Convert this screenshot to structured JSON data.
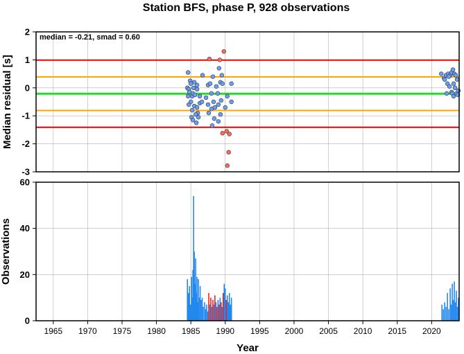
{
  "title": "Station BFS, phase P, 928 observations",
  "chart_data": [
    {
      "type": "scatter",
      "ylabel": "Median residual [s]",
      "annotation": "median = -0.21, smad = 0.60",
      "xlim": [
        1962.5,
        2024
      ],
      "ylim": [
        -3,
        2
      ],
      "yticks": [
        "2",
        "1",
        "0",
        "-1",
        "-2",
        "-3"
      ],
      "grid": true,
      "reference_lines": [
        {
          "value": 0.99,
          "color": "#ee0000"
        },
        {
          "value": 0.39,
          "color": "#ffa500"
        },
        {
          "value": -0.21,
          "color": "#22dd22"
        },
        {
          "value": -0.81,
          "color": "#ffa500"
        },
        {
          "value": -1.41,
          "color": "#ee0000"
        }
      ],
      "colors": {
        "inlier": "#6aa0f0",
        "outlier": "#ff6a55"
      },
      "points": [
        [
          1984.6,
          0.55,
          0
        ],
        [
          1984.5,
          0.0,
          0
        ],
        [
          1984.7,
          -0.05,
          0
        ],
        [
          1984.6,
          -0.3,
          0
        ],
        [
          1984.9,
          0.25,
          0
        ],
        [
          1985.0,
          0.15,
          0
        ],
        [
          1984.8,
          -0.15,
          0
        ],
        [
          1985.2,
          -0.3,
          0
        ],
        [
          1985.3,
          -0.2,
          0
        ],
        [
          1985.6,
          -0.25,
          0
        ],
        [
          1985.9,
          0.1,
          0
        ],
        [
          1985.4,
          0.0,
          0
        ],
        [
          1984.7,
          -0.6,
          0
        ],
        [
          1985.0,
          -0.5,
          0
        ],
        [
          1985.5,
          -0.65,
          0
        ],
        [
          1985.9,
          -0.7,
          0
        ],
        [
          1986.3,
          -0.55,
          0
        ],
        [
          1986.6,
          -0.5,
          0
        ],
        [
          1986.0,
          -0.9,
          0
        ],
        [
          1985.2,
          -0.8,
          0
        ],
        [
          1985.1,
          -1.05,
          0
        ],
        [
          1985.3,
          -1.15,
          0
        ],
        [
          1985.7,
          -0.95,
          0
        ],
        [
          1986.1,
          -1.05,
          0
        ],
        [
          1985.8,
          -1.25,
          0
        ],
        [
          1985.5,
          0.2,
          0
        ],
        [
          1986.7,
          0.45,
          0
        ],
        [
          1985.9,
          -0.05,
          0
        ],
        [
          1986.3,
          -0.3,
          0
        ],
        [
          1987.2,
          -0.35,
          0
        ],
        [
          1987.5,
          0.1,
          0
        ],
        [
          1987.8,
          0.15,
          0
        ],
        [
          1988.2,
          0.4,
          0
        ],
        [
          1988.0,
          -0.2,
          0
        ],
        [
          1987.5,
          -0.6,
          0
        ],
        [
          1987.6,
          -0.9,
          0
        ],
        [
          1988.0,
          -0.75,
          0
        ],
        [
          1988.5,
          -0.7,
          0
        ],
        [
          1988.4,
          -1.1,
          0
        ],
        [
          1988.1,
          -1.35,
          0
        ],
        [
          1989.0,
          -1.2,
          0
        ],
        [
          1989.3,
          -0.95,
          0
        ],
        [
          1989.3,
          0.2,
          0
        ],
        [
          1989.1,
          0.7,
          0
        ],
        [
          1989.5,
          0.45,
          0
        ],
        [
          1988.7,
          0.05,
          0
        ],
        [
          1988.9,
          -0.2,
          0
        ],
        [
          1989.4,
          -0.45,
          0
        ],
        [
          1989.6,
          0.15,
          0
        ],
        [
          1990.0,
          -0.7,
          0
        ],
        [
          1990.3,
          -0.3,
          0
        ],
        [
          1990.9,
          0.15,
          0
        ],
        [
          1990.9,
          -0.5,
          0
        ],
        [
          1988.3,
          -0.5,
          0
        ],
        [
          1989.0,
          -0.6,
          0
        ],
        [
          1987.7,
          1.03,
          1
        ],
        [
          1989.2,
          1.0,
          1
        ],
        [
          1989.8,
          1.3,
          1
        ],
        [
          1989.6,
          -1.62,
          1
        ],
        [
          1990.2,
          -1.55,
          1
        ],
        [
          1990.6,
          -1.65,
          1
        ],
        [
          1990.5,
          -2.3,
          1
        ],
        [
          1990.3,
          -2.78,
          1
        ],
        [
          2021.4,
          0.5,
          0
        ],
        [
          2021.8,
          0.35,
          0
        ],
        [
          2022.1,
          0.45,
          0
        ],
        [
          2022.4,
          0.5,
          0
        ],
        [
          2022.7,
          0.45,
          0
        ],
        [
          2022.9,
          0.55,
          0
        ],
        [
          2023.1,
          0.65,
          0
        ],
        [
          2023.3,
          0.5,
          0
        ],
        [
          2023.5,
          0.45,
          0
        ],
        [
          2023.7,
          0.3,
          0
        ],
        [
          2022.3,
          0.15,
          0
        ],
        [
          2022.6,
          0.05,
          0
        ],
        [
          2022.9,
          -0.15,
          0
        ],
        [
          2023.0,
          -0.2,
          0
        ],
        [
          2023.2,
          -0.3,
          0
        ],
        [
          2023.4,
          0.0,
          0
        ],
        [
          2023.6,
          -0.2,
          0
        ],
        [
          2023.8,
          -0.25,
          0
        ],
        [
          2022.2,
          -0.2,
          0
        ],
        [
          2023.2,
          0.15,
          0
        ],
        [
          2021.9,
          0.3,
          0
        ],
        [
          2022.5,
          0.4,
          0
        ],
        [
          2023.9,
          -0.1,
          0
        ]
      ]
    },
    {
      "type": "bar",
      "ylabel": "Observations",
      "xlabel": "Year",
      "xlim": [
        1962.5,
        2024
      ],
      "ylim": [
        0,
        60
      ],
      "xticks": [
        "1965",
        "1970",
        "1975",
        "1980",
        "1985",
        "1990",
        "1995",
        "2000",
        "2005",
        "2010",
        "2015",
        "2020"
      ],
      "yticks": [
        "60",
        "40",
        "20",
        "0"
      ],
      "grid": true,
      "colors": {
        "normal": "#2288ee",
        "flagged": "#ee2222"
      },
      "bars": [
        [
          1984.5,
          18,
          0
        ],
        [
          1984.65,
          12,
          0
        ],
        [
          1984.8,
          15,
          0
        ],
        [
          1984.95,
          7,
          0
        ],
        [
          1985.1,
          19,
          0
        ],
        [
          1985.2,
          10,
          0
        ],
        [
          1985.3,
          22,
          0
        ],
        [
          1985.4,
          54,
          0
        ],
        [
          1985.5,
          30,
          0
        ],
        [
          1985.6,
          16,
          0
        ],
        [
          1985.7,
          27,
          0
        ],
        [
          1985.8,
          12,
          0
        ],
        [
          1985.9,
          19,
          0
        ],
        [
          1986.0,
          8,
          0
        ],
        [
          1986.1,
          18,
          0
        ],
        [
          1986.2,
          10,
          0
        ],
        [
          1986.35,
          15,
          0
        ],
        [
          1986.5,
          9,
          0
        ],
        [
          1986.65,
          10,
          0
        ],
        [
          1986.8,
          6,
          0
        ],
        [
          1987.0,
          8,
          0
        ],
        [
          1987.15,
          5,
          0
        ],
        [
          1987.3,
          7,
          0
        ],
        [
          1987.45,
          4,
          0
        ],
        [
          1987.6,
          12,
          1
        ],
        [
          1987.75,
          7,
          0
        ],
        [
          1987.9,
          10,
          1
        ],
        [
          1988.05,
          6,
          0
        ],
        [
          1988.2,
          9,
          1
        ],
        [
          1988.35,
          7,
          0
        ],
        [
          1988.5,
          11,
          1
        ],
        [
          1988.65,
          8,
          0
        ],
        [
          1988.8,
          6,
          1
        ],
        [
          1988.95,
          9,
          0
        ],
        [
          1989.1,
          7,
          1
        ],
        [
          1989.25,
          10,
          0
        ],
        [
          1989.4,
          8,
          1
        ],
        [
          1989.55,
          6,
          0
        ],
        [
          1989.7,
          12,
          1
        ],
        [
          1989.85,
          16,
          0
        ],
        [
          1990.0,
          14,
          0
        ],
        [
          1990.15,
          9,
          1
        ],
        [
          1990.3,
          11,
          0
        ],
        [
          1990.45,
          8,
          0
        ],
        [
          1990.6,
          12,
          0
        ],
        [
          1990.75,
          7,
          0
        ],
        [
          1990.9,
          10,
          0
        ],
        [
          2021.5,
          7,
          0
        ],
        [
          2021.7,
          5,
          0
        ],
        [
          2021.9,
          8,
          0
        ],
        [
          2022.1,
          6,
          0
        ],
        [
          2022.3,
          12,
          0
        ],
        [
          2022.5,
          5,
          0
        ],
        [
          2022.7,
          14,
          0
        ],
        [
          2022.85,
          7,
          0
        ],
        [
          2023.0,
          16,
          0
        ],
        [
          2023.15,
          9,
          0
        ],
        [
          2023.3,
          17,
          0
        ],
        [
          2023.45,
          8,
          0
        ],
        [
          2023.6,
          13,
          0
        ],
        [
          2023.75,
          6,
          0
        ],
        [
          2023.9,
          10,
          0
        ]
      ]
    }
  ]
}
